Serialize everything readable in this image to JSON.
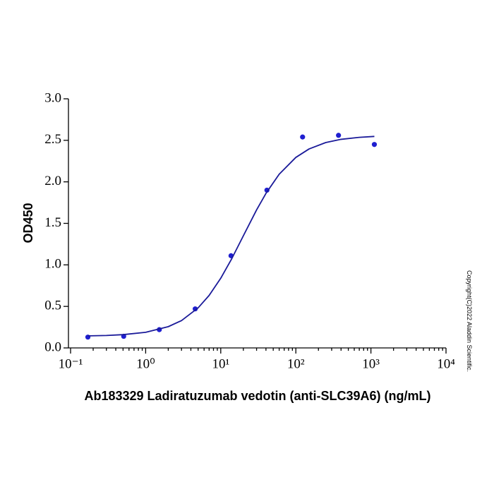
{
  "chart_data": {
    "type": "scatter",
    "xlabel": "Ab183329 Ladiratuzumab vedotin (anti-SLC39A6) (ng/mL)",
    "ylabel": "OD450",
    "annotation": "Copyright(C)2022 Aladdin Scientific.",
    "xscale": "log",
    "xlim": [
      0.1,
      10000
    ],
    "ylim": [
      0,
      3
    ],
    "xticks": [
      {
        "value": 0.1,
        "label": "10⁻¹"
      },
      {
        "value": 1,
        "label": "10⁰"
      },
      {
        "value": 10,
        "label": "10¹"
      },
      {
        "value": 100,
        "label": "10²"
      },
      {
        "value": 1000,
        "label": "10³"
      },
      {
        "value": 10000,
        "label": "10⁴"
      }
    ],
    "xminorticks": [
      0.2,
      0.3,
      0.4,
      0.5,
      0.6,
      0.7,
      0.8,
      0.9,
      2,
      3,
      4,
      5,
      6,
      7,
      8,
      9,
      20,
      30,
      40,
      50,
      60,
      70,
      80,
      90,
      200,
      300,
      400,
      500,
      600,
      700,
      800,
      900,
      2000,
      3000,
      4000,
      5000,
      6000,
      7000,
      8000,
      9000
    ],
    "yticks": [
      {
        "value": 0,
        "label": "0.0"
      },
      {
        "value": 0.5,
        "label": "0.5"
      },
      {
        "value": 1,
        "label": "1.0"
      },
      {
        "value": 1.5,
        "label": "1.5"
      },
      {
        "value": 2,
        "label": "2.0"
      },
      {
        "value": 2.5,
        "label": "2.5"
      },
      {
        "value": 3,
        "label": "3.0"
      }
    ],
    "series": [
      {
        "type": "scatter",
        "color": "#1f1fd0",
        "x": [
          0.17,
          0.51,
          1.52,
          4.57,
          13.7,
          41.2,
          123,
          370,
          1111
        ],
        "values": [
          0.13,
          0.14,
          0.22,
          0.47,
          1.11,
          1.9,
          2.54,
          2.56,
          2.45
        ]
      },
      {
        "type": "line",
        "color": "#1a1a99",
        "x": [
          0.17,
          0.3,
          0.5,
          1,
          2,
          3,
          5,
          7,
          10,
          14,
          20,
          30,
          40,
          60,
          100,
          150,
          250,
          400,
          700,
          1111
        ],
        "values": [
          0.145,
          0.15,
          0.16,
          0.188,
          0.256,
          0.329,
          0.483,
          0.632,
          0.839,
          1.074,
          1.35,
          1.662,
          1.861,
          2.092,
          2.294,
          2.396,
          2.473,
          2.512,
          2.536,
          2.547
        ]
      }
    ]
  }
}
